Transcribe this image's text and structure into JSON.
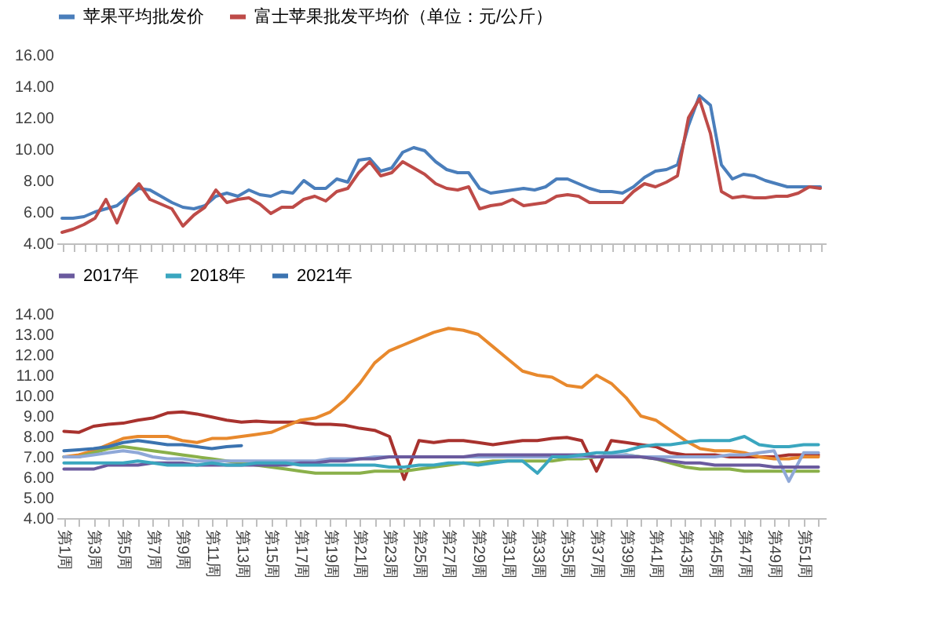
{
  "chart_data": [
    {
      "type": "line",
      "categories": [
        null,
        null,
        null,
        null,
        null,
        null,
        null,
        null,
        null,
        null,
        null,
        null,
        null,
        null,
        null,
        null,
        null,
        null,
        null,
        null,
        null,
        null,
        null,
        null,
        null,
        null,
        null,
        null,
        null,
        null,
        null,
        null,
        null,
        null,
        null,
        null,
        null,
        null,
        null,
        null,
        null,
        null,
        null,
        null,
        null,
        null,
        null,
        null,
        null,
        null,
        null,
        null,
        null,
        null,
        null,
        null,
        null,
        null,
        null,
        null,
        null,
        null,
        null,
        null,
        null,
        null,
        null,
        null,
        null,
        null
      ],
      "ylim": [
        4,
        16
      ],
      "yticks": [
        {
          "value": 4,
          "label": "4.00"
        },
        {
          "value": 6,
          "label": "6.00"
        },
        {
          "value": 8,
          "label": "8.00"
        },
        {
          "value": 10,
          "label": "10.00"
        },
        {
          "value": 12,
          "label": "12.00"
        },
        {
          "value": 14,
          "label": "14.00"
        },
        {
          "value": 16,
          "label": "16.00"
        }
      ],
      "tick_labels": "y",
      "legend": "top",
      "series": [
        {
          "name": "苹果平均批发价",
          "color": "#4a7ebb",
          "values": [
            5.6,
            5.6,
            5.7,
            6.0,
            6.2,
            6.4,
            7.0,
            7.5,
            7.4,
            7.0,
            6.6,
            6.3,
            6.2,
            6.4,
            7.0,
            7.2,
            7.0,
            7.4,
            7.1,
            7.0,
            7.3,
            7.2,
            8.0,
            7.5,
            7.5,
            8.1,
            7.9,
            9.3,
            9.4,
            8.6,
            8.8,
            9.8,
            10.1,
            9.9,
            9.2,
            8.7,
            8.5,
            8.5,
            7.5,
            7.2,
            7.3,
            7.4,
            7.5,
            7.4,
            7.6,
            8.1,
            8.1,
            7.8,
            7.5,
            7.3,
            7.3,
            7.2,
            7.6,
            8.2,
            8.6,
            8.7,
            9.0,
            11.5,
            13.4,
            12.8,
            9.0,
            8.1,
            8.4,
            8.3,
            8.0,
            7.8,
            7.6,
            7.6,
            7.6,
            7.6
          ]
        },
        {
          "name": "富士苹果批发平均价（单位：元/公斤）",
          "color": "#be4b48",
          "values": [
            4.7,
            4.9,
            5.2,
            5.6,
            6.8,
            5.3,
            7.0,
            7.8,
            6.8,
            6.5,
            6.2,
            5.1,
            5.8,
            6.3,
            7.4,
            6.6,
            6.8,
            6.9,
            6.5,
            5.9,
            6.3,
            6.3,
            6.8,
            7.0,
            6.7,
            7.3,
            7.5,
            8.5,
            9.2,
            8.3,
            8.5,
            9.2,
            8.8,
            8.4,
            7.8,
            7.5,
            7.4,
            7.6,
            6.2,
            6.4,
            6.5,
            6.8,
            6.4,
            6.5,
            6.6,
            7.0,
            7.1,
            7.0,
            6.6,
            6.6,
            6.6,
            6.6,
            7.3,
            7.8,
            7.6,
            7.9,
            8.3,
            12.0,
            13.2,
            11.0,
            7.3,
            6.9,
            7.0,
            6.9,
            6.9,
            7.0,
            7.0,
            7.2,
            7.6,
            7.5
          ]
        }
      ]
    },
    {
      "type": "line",
      "categories": [
        "第1周",
        null,
        "第3周",
        null,
        "第5周",
        null,
        "第7周",
        null,
        "第9周",
        null,
        "第11周",
        null,
        "第13周",
        null,
        "第15周",
        null,
        "第17周",
        null,
        "第19周",
        null,
        "第21周",
        null,
        "第23周",
        null,
        "第25周",
        null,
        "第27周",
        null,
        "第29周",
        null,
        "第31周",
        null,
        "第33周",
        null,
        "第35周",
        null,
        "第37周",
        null,
        "第39周",
        null,
        "第41周",
        null,
        "第43周",
        null,
        "第45周",
        null,
        "第47周",
        null,
        "第49周",
        null,
        "第51周",
        null
      ],
      "ylim": [
        4,
        14
      ],
      "yticks": [
        {
          "value": 4,
          "label": "4.00"
        },
        {
          "value": 5,
          "label": "5.00"
        },
        {
          "value": 6,
          "label": "6.00"
        },
        {
          "value": 7,
          "label": "7.00"
        },
        {
          "value": 8,
          "label": "8.00"
        },
        {
          "value": 9,
          "label": "9.00"
        },
        {
          "value": 10,
          "label": "10.00"
        },
        {
          "value": 11,
          "label": "11.00"
        },
        {
          "value": 12,
          "label": "12.00"
        },
        {
          "value": 13,
          "label": "13.00"
        },
        {
          "value": 14,
          "label": "14.00"
        }
      ],
      "legend": "top",
      "series": [
        {
          "color": "#a8322e",
          "values": [
            8.25,
            8.2,
            8.5,
            8.6,
            8.65,
            8.8,
            8.9,
            9.15,
            9.2,
            9.1,
            8.95,
            8.8,
            8.7,
            8.75,
            8.7,
            8.7,
            8.7,
            8.6,
            8.6,
            8.55,
            8.4,
            8.3,
            8.0,
            5.9,
            7.8,
            7.7,
            7.8,
            7.8,
            7.7,
            7.6,
            7.7,
            7.8,
            7.8,
            7.9,
            7.95,
            7.8,
            6.3,
            7.8,
            7.7,
            7.6,
            7.5,
            7.2,
            7.1,
            7.1,
            7.1,
            7.0,
            7.0,
            7.0,
            7.0,
            7.1,
            7.1,
            7.1
          ]
        },
        {
          "color": "#e8892d",
          "values": [
            7.0,
            7.1,
            7.3,
            7.6,
            7.9,
            8.0,
            8.0,
            8.0,
            7.8,
            7.7,
            7.9,
            7.9,
            8.0,
            8.1,
            8.2,
            8.5,
            8.8,
            8.9,
            9.2,
            9.8,
            10.6,
            11.6,
            12.2,
            12.5,
            12.8,
            13.1,
            13.3,
            13.2,
            13.0,
            12.4,
            11.8,
            11.2,
            11.0,
            10.9,
            10.5,
            10.4,
            11.0,
            10.6,
            9.9,
            9.0,
            8.8,
            8.3,
            7.8,
            7.4,
            7.3,
            7.3,
            7.2,
            7.0,
            6.9,
            6.9,
            7.0,
            7.0
          ]
        },
        {
          "color": "#8ab04a",
          "values": [
            7.0,
            7.0,
            7.2,
            7.4,
            7.5,
            7.4,
            7.3,
            7.2,
            7.1,
            7.0,
            6.9,
            6.8,
            6.7,
            6.6,
            6.5,
            6.4,
            6.3,
            6.2,
            6.2,
            6.2,
            6.2,
            6.3,
            6.3,
            6.3,
            6.4,
            6.5,
            6.6,
            6.7,
            6.7,
            6.8,
            6.8,
            6.8,
            6.8,
            6.8,
            6.9,
            6.9,
            7.0,
            7.0,
            7.1,
            7.0,
            6.9,
            6.7,
            6.5,
            6.4,
            6.4,
            6.4,
            6.3,
            6.3,
            6.3,
            6.3,
            6.3,
            6.3
          ]
        },
        {
          "color": "#8fa8d8",
          "values": [
            7.0,
            7.0,
            7.1,
            7.2,
            7.3,
            7.2,
            7.0,
            6.9,
            6.9,
            6.8,
            6.8,
            6.8,
            6.8,
            6.8,
            6.8,
            6.8,
            6.8,
            6.8,
            6.9,
            6.9,
            6.9,
            7.0,
            7.0,
            7.0,
            7.0,
            7.0,
            7.0,
            7.0,
            7.0,
            7.0,
            7.0,
            7.0,
            7.0,
            7.0,
            7.0,
            7.0,
            7.0,
            7.1,
            7.1,
            7.0,
            7.0,
            7.0,
            7.0,
            7.0,
            7.0,
            7.1,
            7.1,
            7.2,
            7.3,
            5.8,
            7.2,
            7.2
          ]
        },
        {
          "name": "2017年",
          "color": "#6a5a9e",
          "values": [
            6.4,
            6.4,
            6.4,
            6.6,
            6.6,
            6.6,
            6.7,
            6.7,
            6.7,
            6.6,
            6.6,
            6.6,
            6.6,
            6.6,
            6.6,
            6.6,
            6.7,
            6.7,
            6.8,
            6.8,
            6.9,
            6.9,
            7.0,
            7.0,
            7.0,
            7.0,
            7.0,
            7.0,
            7.1,
            7.1,
            7.1,
            7.1,
            7.1,
            7.1,
            7.1,
            7.1,
            7.0,
            7.0,
            7.0,
            7.0,
            6.9,
            6.8,
            6.7,
            6.7,
            6.6,
            6.6,
            6.6,
            6.6,
            6.5,
            6.5,
            6.5,
            6.5
          ]
        },
        {
          "name": "2018年",
          "color": "#3aa6bf",
          "values": [
            6.7,
            6.7,
            6.7,
            6.7,
            6.7,
            6.8,
            6.7,
            6.6,
            6.6,
            6.6,
            6.7,
            6.6,
            6.6,
            6.7,
            6.7,
            6.7,
            6.6,
            6.6,
            6.6,
            6.6,
            6.6,
            6.6,
            6.5,
            6.5,
            6.6,
            6.6,
            6.7,
            6.7,
            6.6,
            6.7,
            6.8,
            6.8,
            6.2,
            7.0,
            7.0,
            7.1,
            7.2,
            7.2,
            7.3,
            7.5,
            7.6,
            7.6,
            7.7,
            7.8,
            7.8,
            7.8,
            8.0,
            7.6,
            7.5,
            7.5,
            7.6,
            7.6
          ]
        },
        {
          "name": "2021年",
          "color": "#3b73b0",
          "values": [
            7.3,
            7.35,
            7.4,
            7.5,
            7.7,
            7.8,
            7.7,
            7.6,
            7.6,
            7.5,
            7.4,
            7.5,
            7.55,
            null,
            null,
            null,
            null,
            null,
            null,
            null,
            null,
            null,
            null,
            null,
            null,
            null,
            null,
            null,
            null,
            null,
            null,
            null,
            null,
            null,
            null,
            null,
            null,
            null,
            null,
            null,
            null,
            null,
            null,
            null,
            null,
            null,
            null,
            null,
            null,
            null,
            null,
            null
          ]
        }
      ]
    }
  ]
}
